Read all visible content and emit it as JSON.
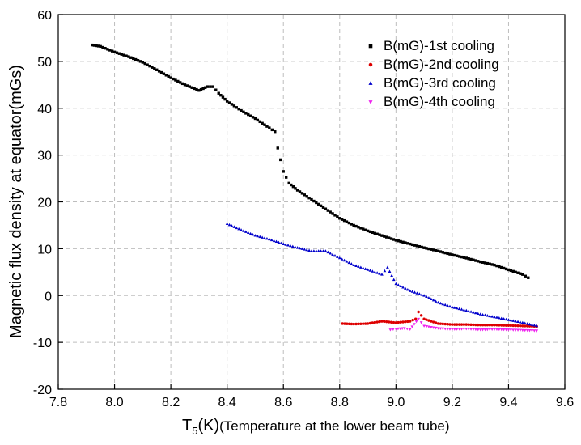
{
  "chart_data": {
    "type": "scatter",
    "xlabel": {
      "main": "T",
      "sub": "5",
      "unit": "(K)",
      "rest": "(Temperature at the lower beam tube)"
    },
    "ylabel": "Magnetic flux density at equator(mGs)",
    "xlim": [
      7.8,
      9.6
    ],
    "ylim": [
      -20,
      60
    ],
    "xticks": [
      7.8,
      8.0,
      8.2,
      8.4,
      8.6,
      8.8,
      9.0,
      9.2,
      9.4,
      9.6
    ],
    "yticks": [
      -20,
      -10,
      0,
      10,
      20,
      30,
      40,
      50,
      60
    ],
    "xtick_labels": [
      "7.8",
      "8.0",
      "8.2",
      "8.4",
      "8.6",
      "8.8",
      "9.0",
      "9.2",
      "9.4",
      "9.6"
    ],
    "ytick_labels": [
      "-20",
      "-10",
      "0",
      "10",
      "20",
      "30",
      "40",
      "50",
      "60"
    ],
    "grid": true,
    "legend_position": "top-right",
    "series": [
      {
        "name": "B(mG)-1st cooling",
        "color": "#000000",
        "marker": "square",
        "points": [
          [
            7.92,
            53.5
          ],
          [
            7.95,
            53.2
          ],
          [
            8.0,
            52.0
          ],
          [
            8.05,
            51.0
          ],
          [
            8.1,
            49.8
          ],
          [
            8.15,
            48.2
          ],
          [
            8.2,
            46.5
          ],
          [
            8.25,
            45.0
          ],
          [
            8.3,
            43.8
          ],
          [
            8.33,
            44.6
          ],
          [
            8.35,
            44.6
          ],
          [
            8.37,
            43.2
          ],
          [
            8.4,
            41.5
          ],
          [
            8.45,
            39.5
          ],
          [
            8.5,
            37.8
          ],
          [
            8.55,
            35.8
          ],
          [
            8.57,
            35.0
          ],
          [
            8.58,
            31.5
          ],
          [
            8.6,
            26.5
          ],
          [
            8.62,
            24.0
          ],
          [
            8.65,
            22.5
          ],
          [
            8.7,
            20.5
          ],
          [
            8.75,
            18.5
          ],
          [
            8.8,
            16.5
          ],
          [
            8.85,
            15.0
          ],
          [
            8.9,
            13.8
          ],
          [
            8.95,
            12.8
          ],
          [
            9.0,
            11.8
          ],
          [
            9.05,
            11.0
          ],
          [
            9.1,
            10.2
          ],
          [
            9.15,
            9.5
          ],
          [
            9.2,
            8.7
          ],
          [
            9.25,
            8.0
          ],
          [
            9.3,
            7.2
          ],
          [
            9.35,
            6.5
          ],
          [
            9.4,
            5.5
          ],
          [
            9.45,
            4.5
          ],
          [
            9.47,
            3.8
          ]
        ]
      },
      {
        "name": "B(mG)-2nd cooling",
        "color": "#dd0000",
        "marker": "circle",
        "points": [
          [
            8.81,
            -6.0
          ],
          [
            8.85,
            -6.1
          ],
          [
            8.9,
            -6.0
          ],
          [
            8.95,
            -5.5
          ],
          [
            9.0,
            -5.8
          ],
          [
            9.05,
            -5.5
          ],
          [
            9.07,
            -5.0
          ],
          [
            9.08,
            -3.5
          ],
          [
            9.1,
            -5.0
          ],
          [
            9.15,
            -6.0
          ],
          [
            9.2,
            -6.2
          ],
          [
            9.25,
            -6.2
          ],
          [
            9.3,
            -6.3
          ],
          [
            9.35,
            -6.3
          ],
          [
            9.4,
            -6.4
          ],
          [
            9.45,
            -6.5
          ],
          [
            9.5,
            -6.6
          ]
        ]
      },
      {
        "name": "B(mG)-3rd cooling",
        "color": "#0000cc",
        "marker": "triangle",
        "points": [
          [
            8.4,
            15.3
          ],
          [
            8.45,
            14.0
          ],
          [
            8.5,
            12.8
          ],
          [
            8.55,
            12.0
          ],
          [
            8.6,
            11.0
          ],
          [
            8.65,
            10.2
          ],
          [
            8.7,
            9.5
          ],
          [
            8.75,
            9.5
          ],
          [
            8.8,
            8.0
          ],
          [
            8.85,
            6.5
          ],
          [
            8.9,
            5.5
          ],
          [
            8.95,
            4.5
          ],
          [
            8.97,
            6.0
          ],
          [
            9.0,
            2.5
          ],
          [
            9.05,
            1.0
          ],
          [
            9.1,
            0.0
          ],
          [
            9.15,
            -1.5
          ],
          [
            9.2,
            -2.5
          ],
          [
            9.25,
            -3.2
          ],
          [
            9.3,
            -4.0
          ],
          [
            9.35,
            -4.6
          ],
          [
            9.4,
            -5.2
          ],
          [
            9.45,
            -5.8
          ],
          [
            9.5,
            -6.5
          ]
        ]
      },
      {
        "name": "B(mG)-4th cooling",
        "color": "#ee22ee",
        "marker": "triangle-down",
        "points": [
          [
            8.98,
            -7.3
          ],
          [
            9.0,
            -7.1
          ],
          [
            9.03,
            -7.0
          ],
          [
            9.05,
            -7.2
          ],
          [
            9.08,
            -5.0
          ],
          [
            9.1,
            -6.5
          ],
          [
            9.15,
            -7.0
          ],
          [
            9.2,
            -7.2
          ],
          [
            9.25,
            -7.1
          ],
          [
            9.3,
            -7.3
          ],
          [
            9.35,
            -7.2
          ],
          [
            9.4,
            -7.3
          ],
          [
            9.45,
            -7.4
          ],
          [
            9.5,
            -7.5
          ]
        ]
      }
    ]
  }
}
